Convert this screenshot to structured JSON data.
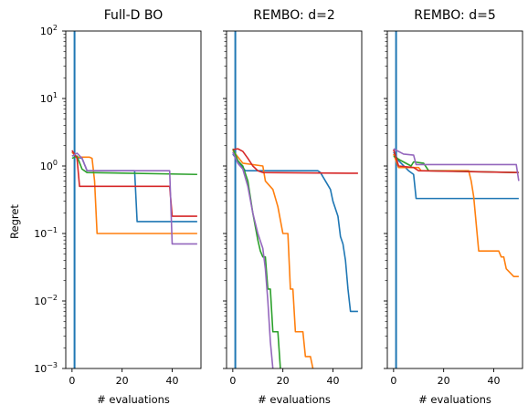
{
  "chart_data": {
    "type": "line",
    "shared": {
      "ylabel": "Regret",
      "xlabel": "# evaluations",
      "yscale": "log",
      "ylim": [
        0.001,
        100
      ],
      "xlim": [
        -2.5,
        51.5
      ],
      "xticks": [
        0,
        20,
        40
      ],
      "yticks": [
        {
          "value": 0.001,
          "base": "10",
          "exp": "−3"
        },
        {
          "value": 0.01,
          "base": "10",
          "exp": "−2"
        },
        {
          "value": 0.1,
          "base": "10",
          "exp": "−1"
        },
        {
          "value": 1,
          "base": "10",
          "exp": "0"
        },
        {
          "value": 10,
          "base": "10",
          "exp": "1"
        },
        {
          "value": 100,
          "base": "10",
          "exp": "2"
        }
      ],
      "vline_x": 1,
      "vline_color": "#1f77b4"
    },
    "panels": [
      {
        "title": "Full-D BO",
        "series": [
          {
            "color": "#1f77b4",
            "points": [
              [
                0,
                1.6
              ],
              [
                2,
                1.35
              ],
              [
                4,
                1.3
              ],
              [
                6,
                0.85
              ],
              [
                25,
                0.85
              ],
              [
                26,
                0.15
              ],
              [
                50,
                0.15
              ]
            ]
          },
          {
            "color": "#ff7f0e",
            "points": [
              [
                0,
                1.6
              ],
              [
                2,
                1.35
              ],
              [
                7,
                1.35
              ],
              [
                8,
                1.3
              ],
              [
                9,
                0.6
              ],
              [
                10,
                0.1
              ],
              [
                50,
                0.1
              ]
            ]
          },
          {
            "color": "#2ca02c",
            "points": [
              [
                0,
                1.3
              ],
              [
                2,
                1.4
              ],
              [
                4,
                0.9
              ],
              [
                6,
                0.8
              ],
              [
                50,
                0.75
              ]
            ]
          },
          {
            "color": "#d62728",
            "points": [
              [
                0,
                1.7
              ],
              [
                2,
                1.3
              ],
              [
                3,
                0.5
              ],
              [
                39,
                0.5
              ],
              [
                40,
                0.18
              ],
              [
                50,
                0.18
              ]
            ]
          },
          {
            "color": "#9467bd",
            "points": [
              [
                0,
                1.4
              ],
              [
                2,
                1.55
              ],
              [
                4,
                1.3
              ],
              [
                6,
                0.85
              ],
              [
                39,
                0.85
              ],
              [
                40,
                0.07
              ],
              [
                50,
                0.07
              ]
            ]
          }
        ]
      },
      {
        "title": "REMBO: d=2",
        "series": [
          {
            "color": "#1f77b4",
            "points": [
              [
                0,
                1.5
              ],
              [
                2,
                1.2
              ],
              [
                5,
                0.85
              ],
              [
                34,
                0.85
              ],
              [
                35,
                0.8
              ],
              [
                37,
                0.6
              ],
              [
                39,
                0.45
              ],
              [
                40,
                0.3
              ],
              [
                42,
                0.18
              ],
              [
                43,
                0.09
              ],
              [
                44,
                0.07
              ],
              [
                45,
                0.04
              ],
              [
                46,
                0.015
              ],
              [
                47,
                0.007
              ],
              [
                50,
                0.007
              ]
            ]
          },
          {
            "color": "#ff7f0e",
            "points": [
              [
                0,
                1.7
              ],
              [
                4,
                1.1
              ],
              [
                12,
                1.0
              ],
              [
                13,
                0.6
              ],
              [
                16,
                0.45
              ],
              [
                18,
                0.25
              ],
              [
                20,
                0.1
              ],
              [
                22,
                0.1
              ],
              [
                23,
                0.015
              ],
              [
                24,
                0.015
              ],
              [
                25,
                0.0035
              ],
              [
                28,
                0.0035
              ],
              [
                29,
                0.0015
              ],
              [
                31,
                0.0015
              ],
              [
                32,
                0.001
              ]
            ]
          },
          {
            "color": "#2ca02c",
            "points": [
              [
                0,
                1.8
              ],
              [
                1,
                1.5
              ],
              [
                2,
                1.2
              ],
              [
                4,
                1.0
              ],
              [
                6,
                0.6
              ],
              [
                8,
                0.2
              ],
              [
                10,
                0.08
              ],
              [
                11,
                0.055
              ],
              [
                12,
                0.045
              ],
              [
                13,
                0.045
              ],
              [
                14,
                0.015
              ],
              [
                15,
                0.015
              ],
              [
                16,
                0.0035
              ],
              [
                18,
                0.0035
              ],
              [
                19,
                0.001
              ]
            ]
          },
          {
            "color": "#d62728",
            "points": [
              [
                0,
                1.75
              ],
              [
                2,
                1.8
              ],
              [
                4,
                1.65
              ],
              [
                6,
                1.3
              ],
              [
                8,
                1.0
              ],
              [
                10,
                0.85
              ],
              [
                12,
                0.8
              ],
              [
                50,
                0.78
              ]
            ]
          },
          {
            "color": "#9467bd",
            "points": [
              [
                0,
                1.6
              ],
              [
                2,
                1.1
              ],
              [
                4,
                0.9
              ],
              [
                6,
                0.5
              ],
              [
                8,
                0.2
              ],
              [
                10,
                0.1
              ],
              [
                12,
                0.06
              ],
              [
                13,
                0.03
              ],
              [
                14,
                0.01
              ],
              [
                15,
                0.0025
              ],
              [
                16,
                0.001
              ]
            ]
          }
        ]
      },
      {
        "title": "REMBO: d=5",
        "series": [
          {
            "color": "#1f77b4",
            "points": [
              [
                0,
                1.6
              ],
              [
                2,
                1.2
              ],
              [
                6,
                0.85
              ],
              [
                8,
                0.75
              ],
              [
                9,
                0.33
              ],
              [
                50,
                0.33
              ]
            ]
          },
          {
            "color": "#ff7f0e",
            "points": [
              [
                0,
                1.5
              ],
              [
                2,
                0.95
              ],
              [
                10,
                0.95
              ],
              [
                11,
                0.85
              ],
              [
                30,
                0.85
              ],
              [
                31,
                0.6
              ],
              [
                32,
                0.35
              ],
              [
                34,
                0.055
              ],
              [
                42,
                0.055
              ],
              [
                43,
                0.045
              ],
              [
                44,
                0.045
              ],
              [
                45,
                0.03
              ],
              [
                48,
                0.023
              ],
              [
                50,
                0.023
              ]
            ]
          },
          {
            "color": "#2ca02c",
            "points": [
              [
                0,
                1.4
              ],
              [
                3,
                1.2
              ],
              [
                7,
                1.0
              ],
              [
                8,
                1.15
              ],
              [
                12,
                1.1
              ],
              [
                14,
                0.85
              ],
              [
                50,
                0.8
              ]
            ]
          },
          {
            "color": "#d62728",
            "points": [
              [
                0,
                1.75
              ],
              [
                2,
                1.0
              ],
              [
                8,
                0.95
              ],
              [
                10,
                0.85
              ],
              [
                50,
                0.8
              ]
            ]
          },
          {
            "color": "#9467bd",
            "points": [
              [
                0,
                1.8
              ],
              [
                4,
                1.5
              ],
              [
                8,
                1.45
              ],
              [
                9,
                1.05
              ],
              [
                49,
                1.05
              ],
              [
                50,
                0.6
              ]
            ]
          }
        ]
      }
    ]
  }
}
